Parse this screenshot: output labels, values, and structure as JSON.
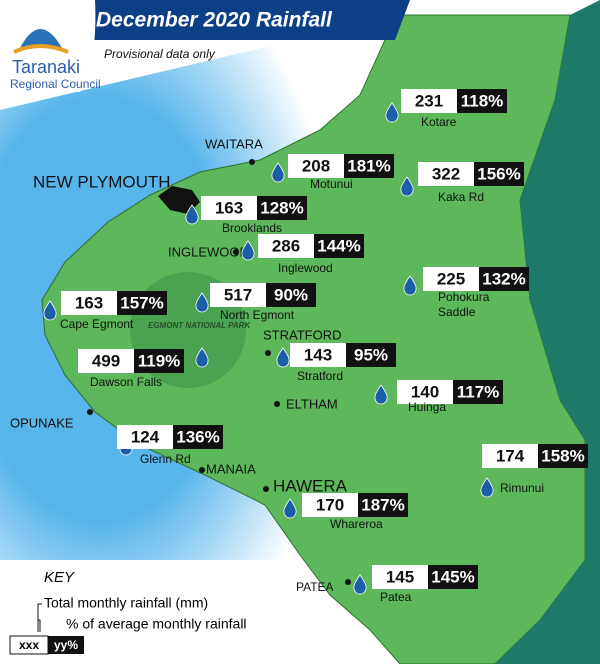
{
  "header": {
    "title": "December 2020 Rainfall",
    "subtitle": "Provisional data only"
  },
  "logo": {
    "name": "Taranaki",
    "council": "Regional Council"
  },
  "park": {
    "label": "EGMONT NATIONAL PARK"
  },
  "towns": [
    {
      "name": "NEW PLYMOUTH"
    },
    {
      "name": "WAITARA"
    },
    {
      "name": "INGLEWOOD"
    },
    {
      "name": "STRATFORD"
    },
    {
      "name": "ELTHAM"
    },
    {
      "name": "OPUNAKE"
    },
    {
      "name": "MANAIA"
    },
    {
      "name": "HAWERA"
    },
    {
      "name": "PATEA"
    }
  ],
  "stations": [
    {
      "name": "Kotare",
      "rainfall": 231,
      "percent": "118%"
    },
    {
      "name": "Motunui",
      "rainfall": 208,
      "percent": "181%"
    },
    {
      "name": "Kaka Rd",
      "rainfall": 322,
      "percent": "156%"
    },
    {
      "name": "Brooklands",
      "rainfall": 163,
      "percent": "128%"
    },
    {
      "name": "Inglewood",
      "rainfall": 286,
      "percent": "144%"
    },
    {
      "name": "Pohokura Saddle",
      "rainfall": 225,
      "percent": "132%"
    },
    {
      "name": "Cape Egmont",
      "rainfall": 163,
      "percent": "157%"
    },
    {
      "name": "North Egmont",
      "rainfall": 517,
      "percent": "90%"
    },
    {
      "name": "Dawson Falls",
      "rainfall": 499,
      "percent": "119%"
    },
    {
      "name": "Stratford",
      "rainfall": 143,
      "percent": "95%"
    },
    {
      "name": "Huinga",
      "rainfall": 140,
      "percent": "117%"
    },
    {
      "name": "Glenn Rd",
      "rainfall": 124,
      "percent": "136%"
    },
    {
      "name": "Rimunui",
      "rainfall": 174,
      "percent": "158%"
    },
    {
      "name": "Whareroa",
      "rainfall": 170,
      "percent": "187%"
    },
    {
      "name": "Patea",
      "rainfall": 145,
      "percent": "145%"
    }
  ],
  "key": {
    "title": "KEY",
    "total": "Total monthly rainfall (mm)",
    "percent": "% of average monthly rainfall",
    "sample_total": "xxx",
    "sample_percent": "yy%"
  }
}
